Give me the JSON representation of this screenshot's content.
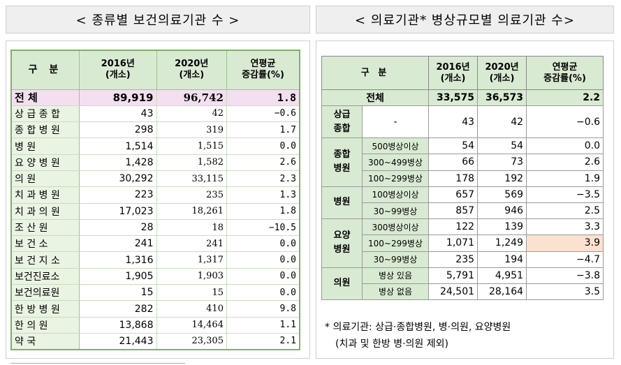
{
  "left": {
    "title": "< 종류별 보건의료기관 수 >",
    "headers": {
      "gubun": "구 분",
      "y2016": "2016년",
      "unit": "(개소)",
      "y2020": "2020년",
      "rate1": "연평균",
      "rate2": "증감률(%)"
    },
    "rows": [
      {
        "name": "전        체",
        "v2016": "89,919",
        "v2020": "96,742",
        "rate": "1.8"
      },
      {
        "name": "상 급 종 합",
        "v2016": "43",
        "v2020": "42",
        "rate": "−0.6"
      },
      {
        "name": "종 합 병 원",
        "v2016": "298",
        "v2020": "319",
        "rate": "1.7"
      },
      {
        "name": "병        원",
        "v2016": "1,514",
        "v2020": "1,515",
        "rate": "0.0"
      },
      {
        "name": "요 양 병 원",
        "v2016": "1,428",
        "v2020": "1,582",
        "rate": "2.6"
      },
      {
        "name": "의        원",
        "v2016": "30,292",
        "v2020": "33,115",
        "rate": "2.3"
      },
      {
        "name": "치 과 병 원",
        "v2016": "223",
        "v2020": "235",
        "rate": "1.3"
      },
      {
        "name": "치 과 의 원",
        "v2016": "17,023",
        "v2020": "18,261",
        "rate": "1.8"
      },
      {
        "name": "조   산   원",
        "v2016": "28",
        "v2020": "18",
        "rate": "−10.5"
      },
      {
        "name": "보   건   소",
        "v2016": "241",
        "v2020": "241",
        "rate": "0.0"
      },
      {
        "name": "보 건 지 소",
        "v2016": "1,316",
        "v2020": "1,317",
        "rate": "0.0"
      },
      {
        "name": "보건진료소",
        "v2016": "1,905",
        "v2020": "1,903",
        "rate": "0.0"
      },
      {
        "name": "보건의료원",
        "v2016": "15",
        "v2020": "15",
        "rate": "0.0"
      },
      {
        "name": "한 방 병 원",
        "v2016": "282",
        "v2020": "410",
        "rate": "9.8"
      },
      {
        "name": "한   의   원",
        "v2016": "13,868",
        "v2020": "14,464",
        "rate": "1.1"
      },
      {
        "name": "약        국",
        "v2016": "21,443",
        "v2020": "23,305",
        "rate": "2.1"
      }
    ]
  },
  "right": {
    "title": "< 의료기관* 병상규모별 의료기관 수>",
    "headers": {
      "gubun": "구 분",
      "y2016": "2016년",
      "unit": "(개소)",
      "y2020": "2020년",
      "rate1": "연평균",
      "rate2": "증감률(%)"
    },
    "total": {
      "name": "전체",
      "v2016": "33,575",
      "v2020": "36,573",
      "rate": "2.2"
    },
    "groups": {
      "g1": {
        "l1": "상급",
        "l2": "종합",
        "sub": "-",
        "v2016": "43",
        "v2020": "42",
        "rate": "−0.6"
      },
      "g2": {
        "l1": "종합",
        "l2": "병원",
        "rows": [
          {
            "sub": "500병상이상",
            "v2016": "54",
            "v2020": "54",
            "rate": "0.0"
          },
          {
            "sub": "300~499병상",
            "v2016": "66",
            "v2020": "73",
            "rate": "2.6"
          },
          {
            "sub": "100~299병상",
            "v2016": "178",
            "v2020": "192",
            "rate": "1.9"
          }
        ]
      },
      "g3": {
        "l1": "병원",
        "rows": [
          {
            "sub": "100병상이상",
            "v2016": "657",
            "v2020": "569",
            "rate": "−3.5"
          },
          {
            "sub": "30~99병상",
            "v2016": "857",
            "v2020": "946",
            "rate": "2.5"
          }
        ]
      },
      "g4": {
        "l1": "요양",
        "l2": "병원",
        "rows": [
          {
            "sub": "300병상이상",
            "v2016": "122",
            "v2020": "139",
            "rate": "3.3"
          },
          {
            "sub": "100~299병상",
            "v2016": "1,071",
            "v2020": "1,249",
            "rate": "3.9"
          },
          {
            "sub": "30~99병상",
            "v2016": "235",
            "v2020": "194",
            "rate": "−4.7"
          }
        ]
      },
      "g5": {
        "l1": "의원",
        "rows": [
          {
            "sub": "병상 있음",
            "v2016": "5,791",
            "v2020": "4,951",
            "rate": "−3.8"
          },
          {
            "sub": "병상 없음",
            "v2016": "24,501",
            "v2020": "28,164",
            "rate": "3.5"
          }
        ]
      }
    },
    "note1": "* 의료기관: 상급·종합병원, 병·의원, 요양병원",
    "note2": "(치과 및 한방 병·의원 제외)"
  }
}
